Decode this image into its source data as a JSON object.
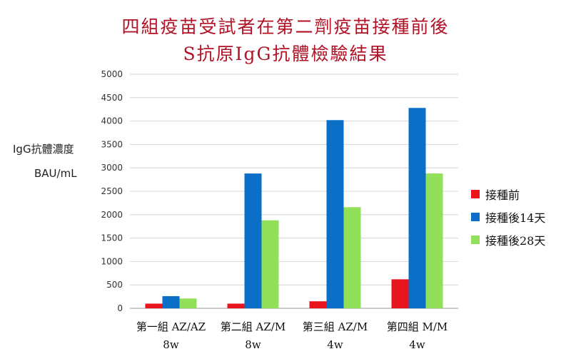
{
  "chart_data": {
    "type": "bar",
    "title_line1": "四組疫苗受試者在第二劑疫苗接種前後",
    "title_line2": "S抗原IgG抗體檢驗結果",
    "ylabel_line1": "IgG抗體濃度",
    "ylabel_line2": "BAU/mL",
    "ylim": [
      0,
      5000
    ],
    "yticks": [
      "0",
      "500",
      "1000",
      "1500",
      "2000",
      "2500",
      "3000",
      "3500",
      "4000",
      "4500",
      "5000"
    ],
    "categories": [
      {
        "line1": "第一組 AZ/AZ",
        "line2": "8w"
      },
      {
        "line1": "第二組 AZ/M",
        "line2": "8w"
      },
      {
        "line1": "第三組 AZ/M",
        "line2": "4w"
      },
      {
        "line1": "第四組 M/M",
        "line2": "4w"
      }
    ],
    "series": [
      {
        "name": "接種前",
        "color": "#e8141e",
        "values": [
          100,
          100,
          150,
          620
        ]
      },
      {
        "name": "接種後14天",
        "color": "#0b6fc7",
        "values": [
          260,
          2880,
          4020,
          4280
        ]
      },
      {
        "name": "接種後28天",
        "color": "#92e05a",
        "values": [
          210,
          1880,
          2160,
          2880
        ]
      }
    ],
    "legend_position": "right"
  }
}
